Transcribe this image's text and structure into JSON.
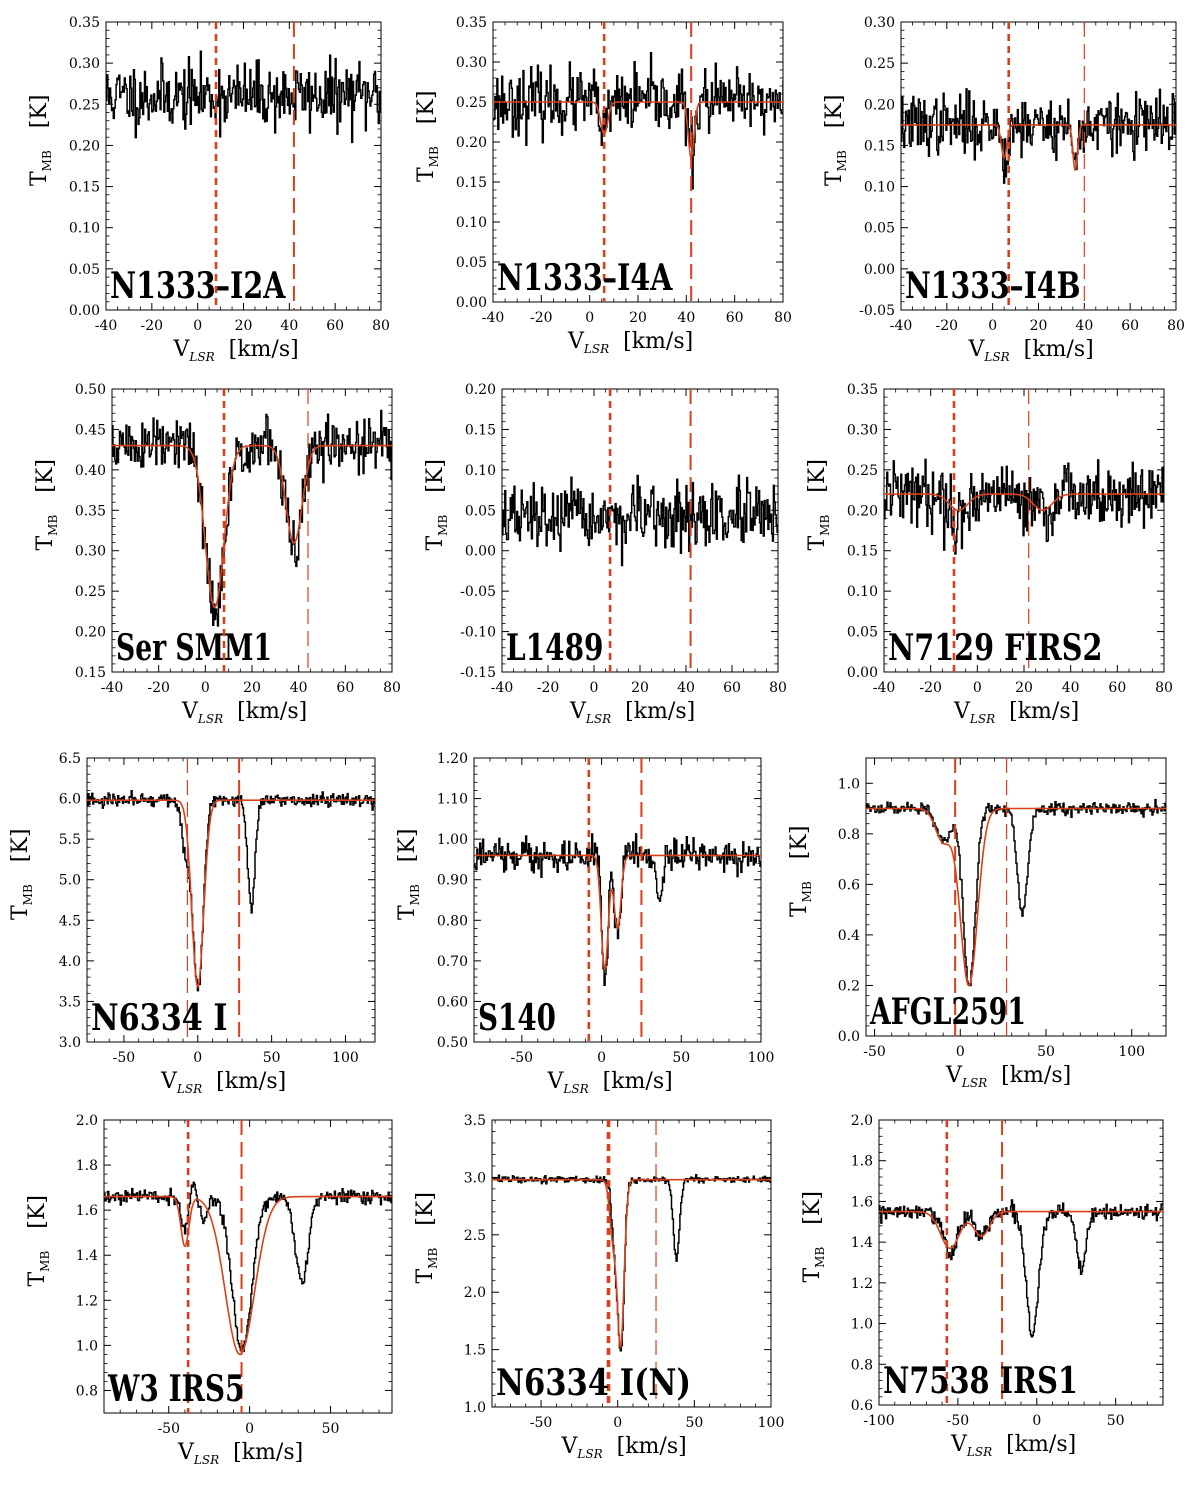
{
  "figure": {
    "xlabel_main": "V",
    "xlabel_sub": "LSR",
    "xlabel_unit": "[km/s]",
    "ylabel_main": "T",
    "ylabel_sub": "MB",
    "ylabel_unit": "[K]",
    "colors": {
      "spectrum": "#000000",
      "fit": "#d9401a",
      "marker": "#d9401a",
      "axes": "#000000"
    }
  },
  "chart_data": [
    {
      "type": "line",
      "title": "N1333–I2A",
      "xlim": [
        -40,
        80
      ],
      "ylim": [
        0.0,
        0.35
      ],
      "xticks": [
        -40,
        -20,
        0,
        20,
        40,
        60,
        80
      ],
      "yticks": [
        0.0,
        0.05,
        0.1,
        0.15,
        0.2,
        0.25,
        0.3,
        0.35
      ],
      "baseline": 0.26,
      "noise": 0.02,
      "seed": 11,
      "absorptions": [],
      "fit": null,
      "markers": [
        {
          "x": 8,
          "style": "short"
        },
        {
          "x": 42,
          "style": "long"
        }
      ]
    },
    {
      "type": "line",
      "title": "N1333–I4A",
      "xlim": [
        -40,
        80
      ],
      "ylim": [
        0.0,
        0.35
      ],
      "xticks": [
        -40,
        -20,
        0,
        20,
        40,
        60,
        80
      ],
      "yticks": [
        0.0,
        0.05,
        0.1,
        0.15,
        0.2,
        0.25,
        0.3,
        0.35
      ],
      "baseline": 0.25,
      "noise": 0.02,
      "seed": 23,
      "absorptions": [
        {
          "center": 6,
          "depth": 0.04,
          "width": 1.5
        },
        {
          "center": 42,
          "depth": 0.07,
          "width": 1.2
        }
      ],
      "fit": {
        "baseline": 0.25,
        "absorptions": [
          {
            "center": 6,
            "depth": 0.04,
            "width": 1.5
          },
          {
            "center": 42,
            "depth": 0.07,
            "width": 1.2
          }
        ]
      },
      "markers": [
        {
          "x": 6,
          "style": "short"
        },
        {
          "x": 42,
          "style": "long"
        }
      ]
    },
    {
      "type": "line",
      "title": "N1333–I4B",
      "xlim": [
        -40,
        80
      ],
      "ylim": [
        -0.05,
        0.3
      ],
      "xticks": [
        -40,
        -20,
        0,
        20,
        40,
        60,
        80
      ],
      "yticks": [
        -0.05,
        0.0,
        0.05,
        0.1,
        0.15,
        0.2,
        0.25,
        0.3
      ],
      "baseline": 0.175,
      "noise": 0.018,
      "seed": 37,
      "absorptions": [
        {
          "center": 5,
          "depth": 0.04,
          "width": 1.2
        },
        {
          "center": 36,
          "depth": 0.055,
          "width": 1.0
        }
      ],
      "fit": {
        "baseline": 0.175,
        "absorptions": [
          {
            "center": 5,
            "depth": 0.04,
            "width": 1.2
          },
          {
            "center": 36,
            "depth": 0.055,
            "width": 1.0
          }
        ]
      },
      "markers": [
        {
          "x": 7,
          "style": "short"
        },
        {
          "x": 40,
          "style": "long-thin"
        }
      ]
    },
    {
      "type": "line",
      "title": "Ser SMM1",
      "xlim": [
        -40,
        80
      ],
      "ylim": [
        0.15,
        0.5
      ],
      "xticks": [
        -40,
        -20,
        0,
        20,
        40,
        60,
        80
      ],
      "yticks": [
        0.15,
        0.2,
        0.25,
        0.3,
        0.35,
        0.4,
        0.45,
        0.5
      ],
      "baseline": 0.43,
      "noise": 0.018,
      "seed": 51,
      "absorptions": [
        {
          "center": 4,
          "depth": 0.21,
          "width": 4.0
        },
        {
          "center": 38,
          "depth": 0.13,
          "width": 3.5
        }
      ],
      "fit": {
        "baseline": 0.43,
        "absorptions": [
          {
            "center": 4,
            "depth": 0.2,
            "width": 4.0
          },
          {
            "center": 38,
            "depth": 0.12,
            "width": 3.5
          }
        ]
      },
      "markers": [
        {
          "x": 8,
          "style": "short"
        },
        {
          "x": 44,
          "style": "long-thin"
        }
      ]
    },
    {
      "type": "line",
      "title": "L1489",
      "xlim": [
        -40,
        80
      ],
      "ylim": [
        -0.15,
        0.2
      ],
      "xticks": [
        -40,
        -20,
        0,
        20,
        40,
        60,
        80
      ],
      "yticks": [
        -0.15,
        -0.1,
        -0.05,
        0.0,
        0.05,
        0.1,
        0.15,
        0.2
      ],
      "baseline": 0.04,
      "noise": 0.02,
      "seed": 67,
      "absorptions": [],
      "fit": null,
      "markers": [
        {
          "x": 7,
          "style": "short"
        },
        {
          "x": 42,
          "style": "long"
        }
      ]
    },
    {
      "type": "line",
      "title": "N7129 FIRS2",
      "xlim": [
        -40,
        80
      ],
      "ylim": [
        0.0,
        0.35
      ],
      "xticks": [
        -40,
        -20,
        0,
        20,
        40,
        60,
        80
      ],
      "yticks": [
        0.0,
        0.05,
        0.1,
        0.15,
        0.2,
        0.25,
        0.3,
        0.35
      ],
      "baseline": 0.22,
      "noise": 0.02,
      "seed": 79,
      "absorptions": [
        {
          "center": -8,
          "depth": 0.025,
          "width": 4.0
        },
        {
          "center": 28,
          "depth": 0.025,
          "width": 4.0
        }
      ],
      "fit": {
        "baseline": 0.22,
        "absorptions": [
          {
            "center": -8,
            "depth": 0.02,
            "width": 4.0
          },
          {
            "center": 28,
            "depth": 0.02,
            "width": 4.0
          }
        ]
      },
      "markers": [
        {
          "x": -10,
          "style": "short"
        },
        {
          "x": 22,
          "style": "long-thin"
        }
      ]
    },
    {
      "type": "line",
      "title": "N6334 I",
      "xlim": [
        -75,
        120
      ],
      "ylim": [
        3.0,
        6.5
      ],
      "xticks": [
        -50,
        0,
        50,
        100
      ],
      "yticks": [
        3.0,
        3.5,
        4.0,
        4.5,
        5.0,
        5.5,
        6.0,
        6.5
      ],
      "baseline": 5.98,
      "noise": 0.04,
      "seed": 91,
      "absorptions": [
        {
          "center": 0,
          "depth": 2.3,
          "width": 3.5
        },
        {
          "center": -8,
          "depth": 0.6,
          "width": 3.0
        },
        {
          "center": 36,
          "depth": 1.35,
          "width": 2.5
        }
      ],
      "fit": {
        "baseline": 5.98,
        "absorptions": [
          {
            "center": 0,
            "depth": 2.3,
            "width": 4.0
          }
        ]
      },
      "markers": [
        {
          "x": -7,
          "style": "long-thin"
        },
        {
          "x": 28,
          "style": "long"
        }
      ]
    },
    {
      "type": "line",
      "title": "S140",
      "xlim": [
        -80,
        100
      ],
      "ylim": [
        0.5,
        1.2
      ],
      "xticks": [
        -50,
        0,
        50,
        100
      ],
      "yticks": [
        0.5,
        0.6,
        0.7,
        0.8,
        0.9,
        1.0,
        1.1,
        1.2
      ],
      "baseline": 0.96,
      "noise": 0.02,
      "seed": 103,
      "absorptions": [
        {
          "center": 2,
          "depth": 0.3,
          "width": 2.0
        },
        {
          "center": 10,
          "depth": 0.19,
          "width": 2.0
        },
        {
          "center": 36,
          "depth": 0.12,
          "width": 1.8
        }
      ],
      "fit": {
        "baseline": 0.96,
        "absorptions": [
          {
            "center": 2,
            "depth": 0.28,
            "width": 2.2
          },
          {
            "center": 10,
            "depth": 0.18,
            "width": 2.2
          }
        ]
      },
      "markers": [
        {
          "x": -8,
          "style": "short"
        },
        {
          "x": 25,
          "style": "long"
        }
      ]
    },
    {
      "type": "line",
      "title": "AFGL2591",
      "xlim": [
        -55,
        120
      ],
      "ylim": [
        0.0,
        1.1
      ],
      "xticks": [
        -50,
        0,
        50,
        100
      ],
      "yticks": [
        0.0,
        0.2,
        0.4,
        0.6,
        0.8,
        1.0
      ],
      "baseline": 0.9,
      "noise": 0.012,
      "seed": 117,
      "absorptions": [
        {
          "center": 5,
          "depth": 0.7,
          "width": 3.5
        },
        {
          "center": -10,
          "depth": 0.13,
          "width": 4.0
        },
        {
          "center": 36,
          "depth": 0.42,
          "width": 3.0
        }
      ],
      "fit": {
        "baseline": 0.9,
        "absorptions": [
          {
            "center": 5,
            "depth": 0.7,
            "width": 5.0
          },
          {
            "center": -10,
            "depth": 0.13,
            "width": 4.5
          }
        ]
      },
      "markers": [
        {
          "x": -3,
          "style": "long"
        },
        {
          "x": 27,
          "style": "long-thin"
        }
      ]
    },
    {
      "type": "line",
      "title": "W3 IRS5",
      "xlim": [
        -90,
        88
      ],
      "ylim": [
        0.7,
        2.0
      ],
      "xticks": [
        -50,
        0,
        50
      ],
      "yticks": [
        0.8,
        1.0,
        1.2,
        1.4,
        1.6,
        1.8,
        2.0
      ],
      "baseline": 1.66,
      "noise": 0.015,
      "seed": 131,
      "absorptions": [
        {
          "center": -5,
          "depth": 0.68,
          "width": 6.0
        },
        {
          "center": -40,
          "depth": 0.2,
          "width": 2.5
        },
        {
          "center": -30,
          "depth": 0.15,
          "width": 3.0
        },
        {
          "center": 32,
          "depth": 0.38,
          "width": 4.0
        }
      ],
      "fit": {
        "baseline": 1.66,
        "absorptions": [
          {
            "center": -6,
            "depth": 0.7,
            "width": 9.0
          },
          {
            "center": -40,
            "depth": 0.22,
            "width": 2.5
          }
        ]
      },
      "emission": {
        "center": -35,
        "height": 0.12,
        "width": 4.0
      },
      "markers": [
        {
          "x": -38,
          "style": "short"
        },
        {
          "x": -5,
          "style": "long"
        }
      ]
    },
    {
      "type": "line",
      "title": "N6334 I(N)",
      "xlim": [
        -82,
        100
      ],
      "ylim": [
        1.0,
        3.5
      ],
      "xticks": [
        -50,
        0,
        50,
        100
      ],
      "yticks": [
        1.0,
        1.5,
        2.0,
        2.5,
        3.0,
        3.5
      ],
      "baseline": 2.98,
      "noise": 0.015,
      "seed": 149,
      "absorptions": [
        {
          "center": 2,
          "depth": 1.42,
          "width": 2.0
        },
        {
          "center": -2,
          "depth": 0.6,
          "width": 2.0
        },
        {
          "center": 38,
          "depth": 0.7,
          "width": 2.0
        }
      ],
      "fit": {
        "baseline": 2.98,
        "absorptions": [
          {
            "center": 2,
            "depth": 1.42,
            "width": 2.2
          },
          {
            "center": -3,
            "depth": 0.5,
            "width": 2.2
          }
        ]
      },
      "markers": [
        {
          "x": -6,
          "style": "short-thick"
        },
        {
          "x": 25,
          "style": "long-thin"
        }
      ]
    },
    {
      "type": "line",
      "title": "N7538 IRS1",
      "xlim": [
        -100,
        80
      ],
      "ylim": [
        0.6,
        2.0
      ],
      "xticks": [
        -100,
        -50,
        0,
        50
      ],
      "yticks": [
        0.6,
        0.8,
        1.0,
        1.2,
        1.4,
        1.6,
        1.8,
        2.0
      ],
      "baseline": 1.55,
      "noise": 0.02,
      "seed": 163,
      "absorptions": [
        {
          "center": -55,
          "depth": 0.19,
          "width": 5.0
        },
        {
          "center": -35,
          "depth": 0.12,
          "width": 4.0
        },
        {
          "center": -3,
          "depth": 0.6,
          "width": 4.0
        },
        {
          "center": 28,
          "depth": 0.28,
          "width": 3.0
        }
      ],
      "fit": {
        "baseline": 1.55,
        "absorptions": [
          {
            "center": -55,
            "depth": 0.18,
            "width": 6.0
          },
          {
            "center": -35,
            "depth": 0.12,
            "width": 5.0
          }
        ]
      },
      "markers": [
        {
          "x": -57,
          "style": "short"
        },
        {
          "x": -22,
          "style": "long"
        }
      ]
    }
  ]
}
